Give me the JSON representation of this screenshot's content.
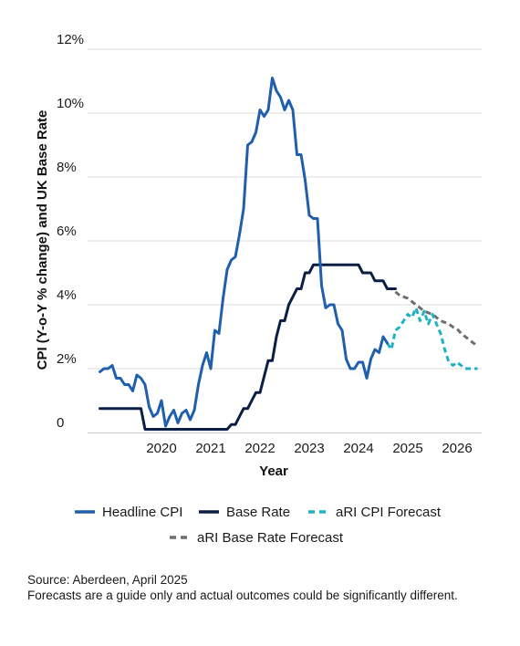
{
  "chart_data": {
    "type": "line",
    "ylabel": "CPI (Y-o-Y % change) and UK Base Rate",
    "xlabel": "Year",
    "ylim": [
      0,
      12
    ],
    "xlim": [
      2019.0,
      2027.0
    ],
    "y_ticks": [
      "0",
      "2%",
      "4%",
      "6%",
      "8%",
      "10%",
      "12%"
    ],
    "x_ticks": [
      "2020",
      "2021",
      "2022",
      "2023",
      "2024",
      "2025",
      "2026"
    ],
    "grid": "horizontal",
    "legend_position": "bottom",
    "series": [
      {
        "name": "Headline CPI",
        "color": "#1f5fae",
        "style": "solid",
        "x": [
          "2019-04",
          "2019-05",
          "2019-06",
          "2019-07",
          "2019-08",
          "2019-09",
          "2019-10",
          "2019-11",
          "2019-12",
          "2020-01",
          "2020-02",
          "2020-03",
          "2020-04",
          "2020-05",
          "2020-06",
          "2020-07",
          "2020-08",
          "2020-09",
          "2020-10",
          "2020-11",
          "2020-12",
          "2021-01",
          "2021-02",
          "2021-03",
          "2021-04",
          "2021-05",
          "2021-06",
          "2021-07",
          "2021-08",
          "2021-09",
          "2021-10",
          "2021-11",
          "2021-12",
          "2022-01",
          "2022-02",
          "2022-03",
          "2022-04",
          "2022-05",
          "2022-06",
          "2022-07",
          "2022-08",
          "2022-09",
          "2022-10",
          "2022-11",
          "2022-12",
          "2023-01",
          "2023-02",
          "2023-03",
          "2023-04",
          "2023-05",
          "2023-06",
          "2023-07",
          "2023-08",
          "2023-09",
          "2023-10",
          "2023-11",
          "2023-12",
          "2024-01",
          "2024-02",
          "2024-03",
          "2024-04",
          "2024-05",
          "2024-06",
          "2024-07",
          "2024-08",
          "2024-09",
          "2024-10",
          "2024-11",
          "2024-12",
          "2025-01",
          "2025-02"
        ],
        "values": [
          1.9,
          2.0,
          2.0,
          2.1,
          1.7,
          1.7,
          1.5,
          1.5,
          1.3,
          1.8,
          1.7,
          1.5,
          0.8,
          0.5,
          0.6,
          1.0,
          0.2,
          0.5,
          0.7,
          0.3,
          0.6,
          0.7,
          0.4,
          0.7,
          1.5,
          2.1,
          2.5,
          2.0,
          3.2,
          3.1,
          4.2,
          5.1,
          5.4,
          5.5,
          6.2,
          7.0,
          9.0,
          9.1,
          9.4,
          10.1,
          9.9,
          10.1,
          11.1,
          10.7,
          10.5,
          10.1,
          10.4,
          10.1,
          8.7,
          8.7,
          7.9,
          6.8,
          6.7,
          6.7,
          4.6,
          3.9,
          4.0,
          4.0,
          3.4,
          3.2,
          2.3,
          2.0,
          2.0,
          2.2,
          2.2,
          1.7,
          2.3,
          2.6,
          2.5,
          3.0,
          2.8
        ]
      },
      {
        "name": "Base Rate",
        "color": "#0b1f45",
        "style": "solid",
        "x": [
          "2019-04",
          "2020-02",
          "2020-03",
          "2021-11",
          "2021-12",
          "2022-01",
          "2022-02",
          "2022-03",
          "2022-04",
          "2022-05",
          "2022-06",
          "2022-07",
          "2022-08",
          "2022-09",
          "2022-10",
          "2022-11",
          "2022-12",
          "2023-01",
          "2023-02",
          "2023-03",
          "2023-04",
          "2023-05",
          "2023-06",
          "2023-07",
          "2023-08",
          "2024-07",
          "2024-08",
          "2024-10",
          "2024-11",
          "2025-01",
          "2025-02",
          "2025-03",
          "2025-04"
        ],
        "values": [
          0.75,
          0.75,
          0.1,
          0.1,
          0.25,
          0.25,
          0.5,
          0.75,
          0.75,
          1.0,
          1.25,
          1.25,
          1.75,
          2.25,
          2.25,
          3.0,
          3.5,
          3.5,
          4.0,
          4.25,
          4.5,
          4.5,
          5.0,
          5.0,
          5.25,
          5.25,
          5.0,
          5.0,
          4.75,
          4.75,
          4.5,
          4.5,
          4.5
        ]
      },
      {
        "name": "aRI CPI Forecast",
        "color": "#1fb2c4",
        "style": "dashed",
        "x": [
          "2025-02",
          "2025-03",
          "2025-04",
          "2025-05",
          "2025-06",
          "2025-07",
          "2025-08",
          "2025-09",
          "2025-10",
          "2025-11",
          "2025-12",
          "2026-01",
          "2026-02",
          "2026-03",
          "2026-04",
          "2026-05",
          "2026-06",
          "2026-07",
          "2026-08",
          "2026-09",
          "2026-10",
          "2026-11",
          "2026-12"
        ],
        "values": [
          2.8,
          2.6,
          3.2,
          3.3,
          3.5,
          3.7,
          3.6,
          3.9,
          3.5,
          3.8,
          3.4,
          3.7,
          3.4,
          3.1,
          2.6,
          2.2,
          2.1,
          2.2,
          2.1,
          2.0,
          2.0,
          2.0,
          2.0
        ]
      },
      {
        "name": "aRI Base Rate Forecast",
        "color": "#6e6e70",
        "style": "dashed",
        "x": [
          "2025-02",
          "2025-03",
          "2025-04",
          "2025-05",
          "2025-06",
          "2025-07",
          "2025-08",
          "2025-09",
          "2025-10",
          "2025-11",
          "2025-12",
          "2026-01",
          "2026-02",
          "2026-03",
          "2026-04",
          "2026-05",
          "2026-06",
          "2026-07",
          "2026-08",
          "2026-09",
          "2026-10",
          "2026-11",
          "2026-12"
        ],
        "values": [
          4.5,
          4.5,
          4.4,
          4.3,
          4.25,
          4.2,
          4.1,
          4.0,
          3.9,
          3.8,
          3.75,
          3.7,
          3.6,
          3.5,
          3.45,
          3.4,
          3.3,
          3.25,
          3.1,
          3.0,
          2.9,
          2.8,
          2.7
        ]
      }
    ]
  },
  "source": {
    "line1": "Source: Aberdeen, April 2025",
    "line2": "Forecasts are a guide only and actual outcomes could be significantly different."
  }
}
